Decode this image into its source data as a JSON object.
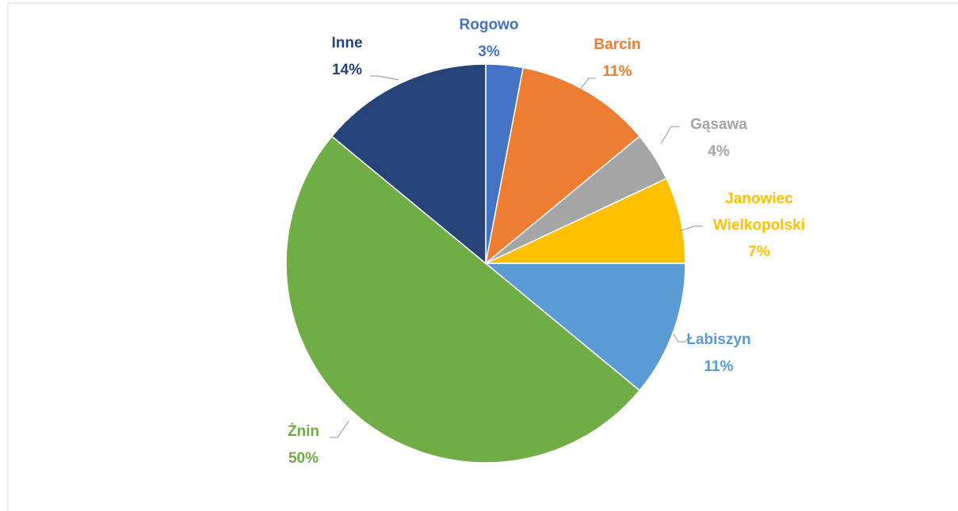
{
  "chart_data": {
    "type": "pie",
    "categories": [
      "Rogowo",
      "Barcin",
      "Gąsawa",
      "Janowiec Wielkopolski",
      "Łabiszyn",
      "Żnin",
      "Inne"
    ],
    "values": [
      3,
      11,
      4,
      7,
      11,
      50,
      14
    ],
    "value_labels": [
      "3%",
      "11%",
      "4%",
      "7%",
      "11%",
      "50%",
      "14%"
    ],
    "colors": [
      "#4472c4",
      "#ed7d31",
      "#a5a5a5",
      "#ffc000",
      "#5b9bd5",
      "#70ad47",
      "#264478"
    ]
  }
}
